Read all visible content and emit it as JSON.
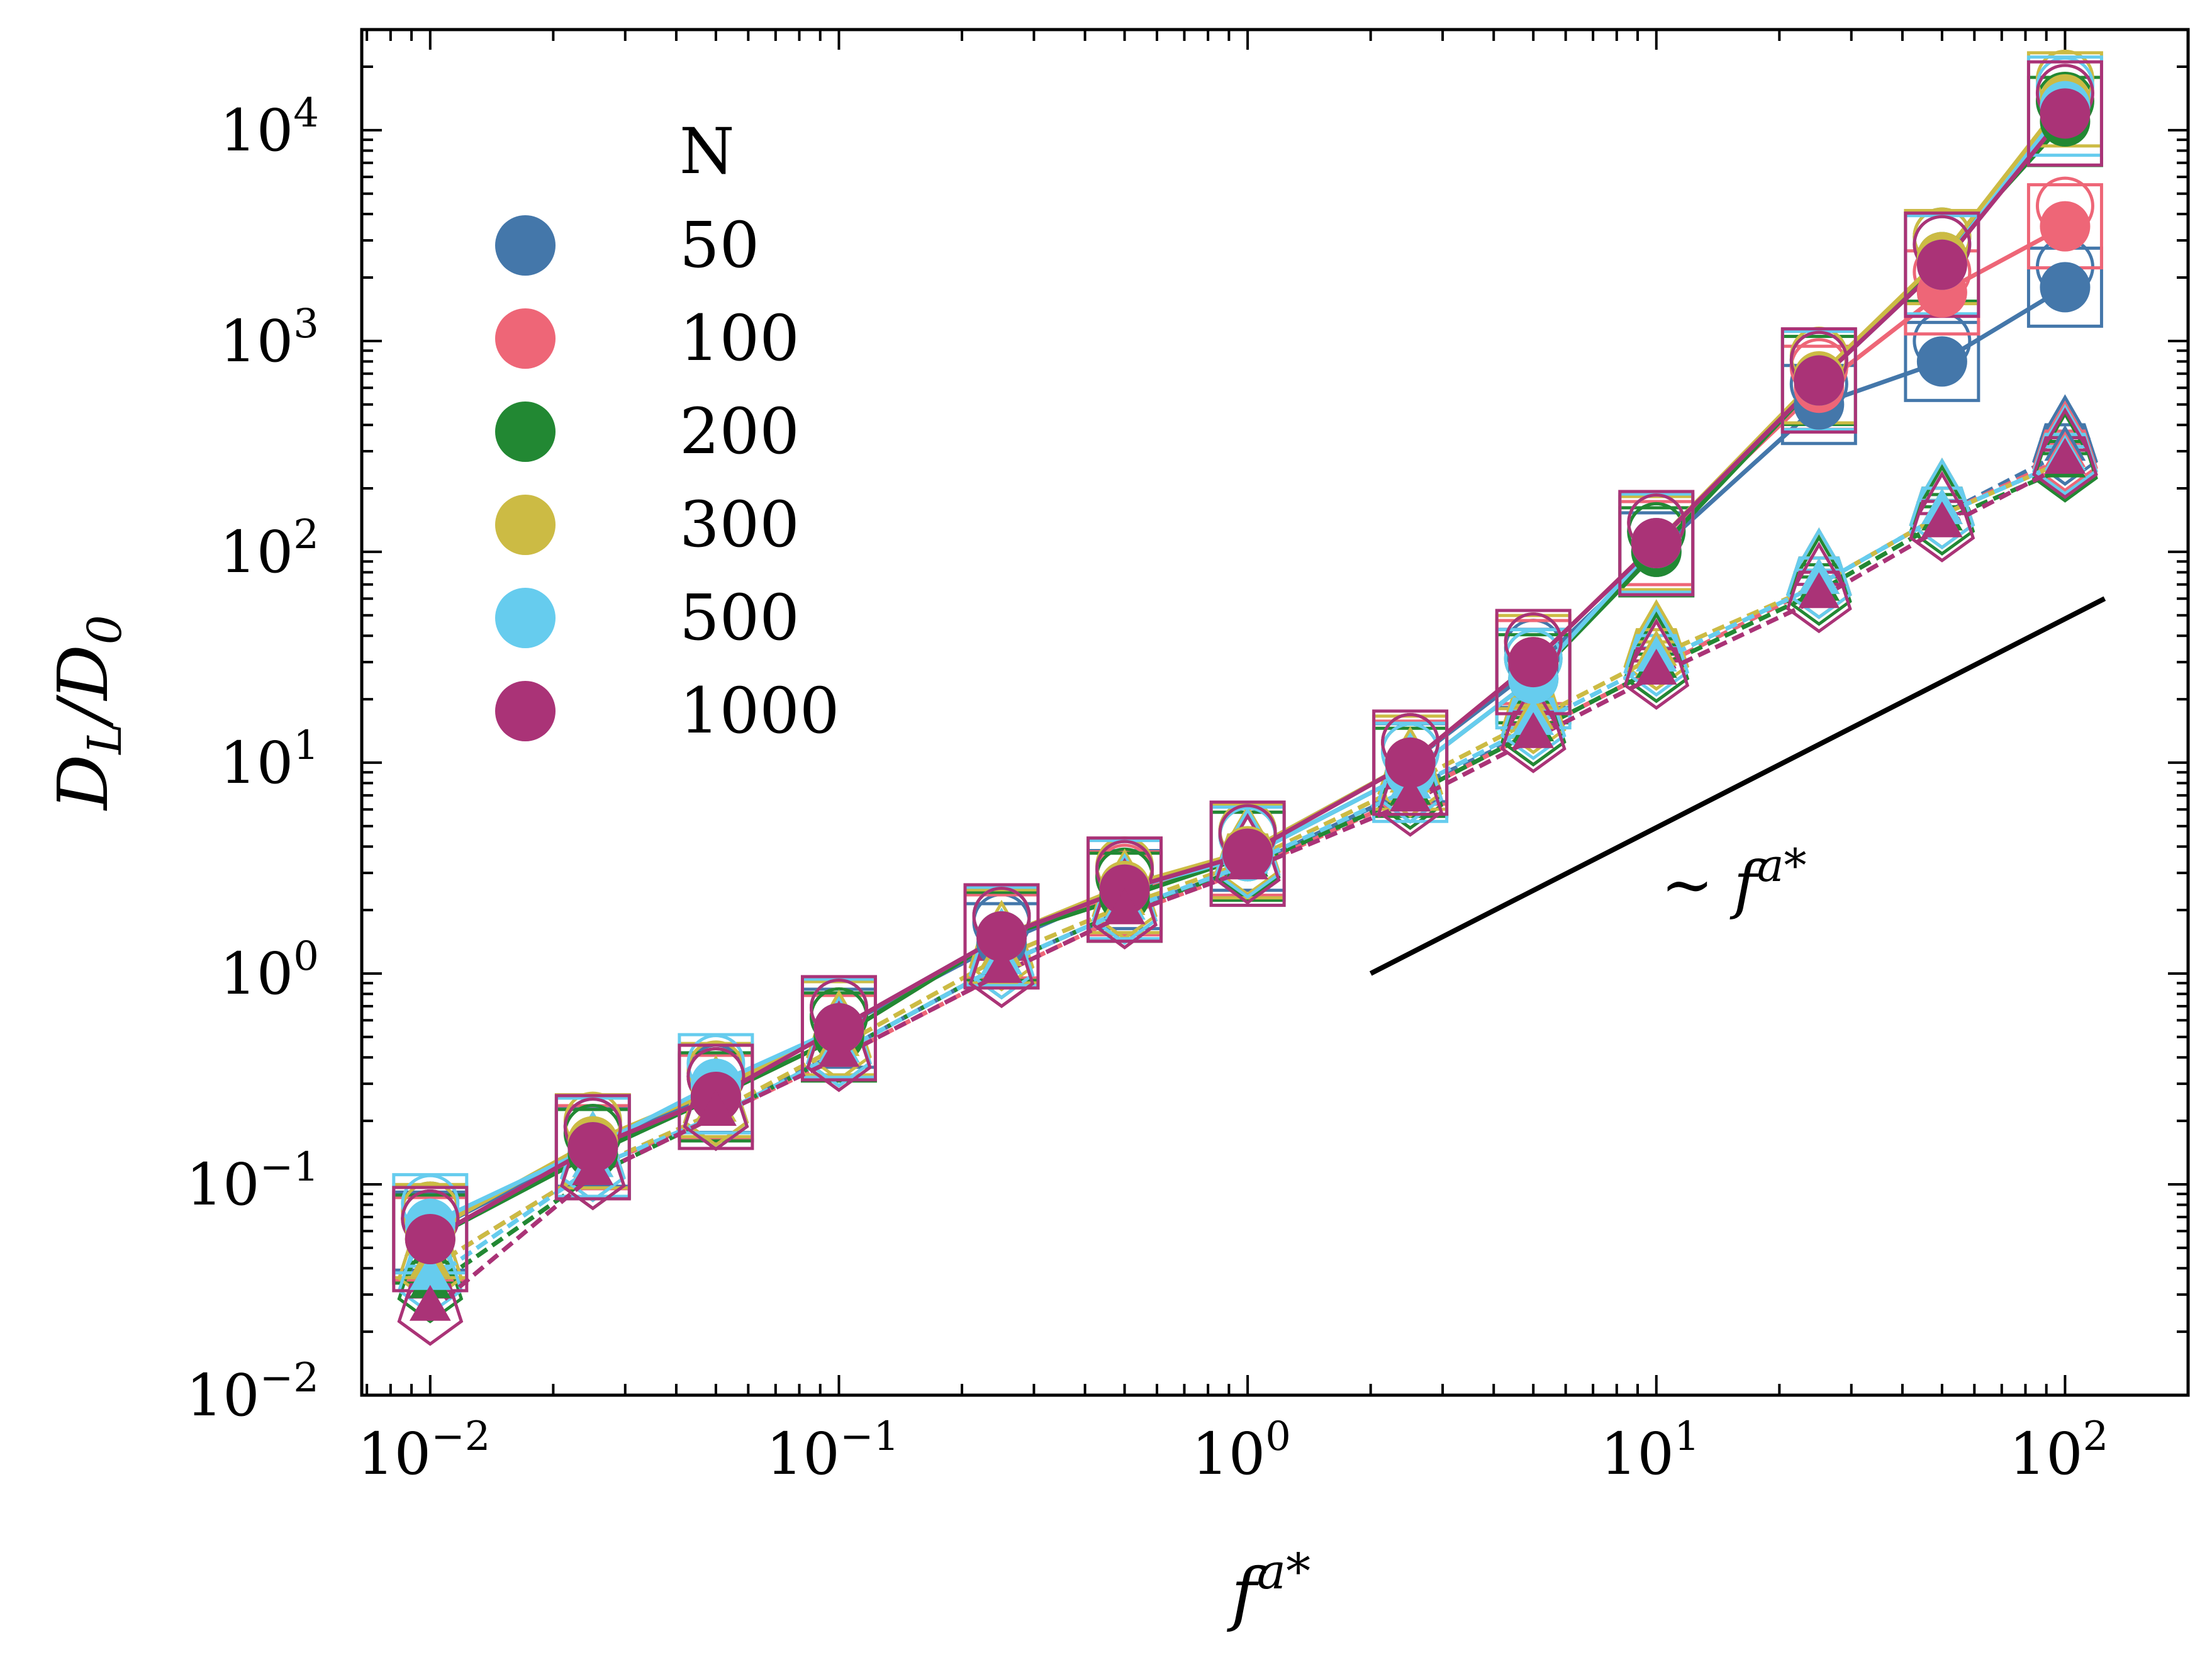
{
  "chart_data": {
    "type": "scatter",
    "title": "",
    "xlabel": "f^{a*}",
    "ylabel": "D_L/D_0",
    "xscale": "log",
    "yscale": "log",
    "xlim": [
      0.0068,
      200
    ],
    "ylim": [
      0.01,
      30000
    ],
    "grid": false,
    "legend": {
      "title": "N",
      "placement": "upper-left"
    },
    "x": [
      0.01,
      0.025,
      0.05,
      0.1,
      0.25,
      0.5,
      1,
      2.5,
      5,
      10,
      25,
      50,
      100
    ],
    "x_tick_labels": [
      {
        "value": 0.01,
        "base": "10",
        "exp": "−2"
      },
      {
        "value": 0.1,
        "base": "10",
        "exp": "−1"
      },
      {
        "value": 1,
        "base": "10",
        "exp": "0"
      },
      {
        "value": 10,
        "base": "10",
        "exp": "1"
      },
      {
        "value": 100,
        "base": "10",
        "exp": "2"
      }
    ],
    "y_tick_labels": [
      {
        "value": 0.01,
        "base": "10",
        "exp": "−2"
      },
      {
        "value": 0.1,
        "base": "10",
        "exp": "−1"
      },
      {
        "value": 1,
        "base": "10",
        "exp": "0"
      },
      {
        "value": 10,
        "base": "10",
        "exp": "1"
      },
      {
        "value": 100,
        "base": "10",
        "exp": "2"
      },
      {
        "value": 1000,
        "base": "10",
        "exp": "3"
      },
      {
        "value": 10000,
        "base": "10",
        "exp": "4"
      }
    ],
    "series": [
      {
        "name": "50",
        "color": "#4477aa",
        "filled": [
          0.06,
          0.15,
          0.27,
          0.55,
          1.4,
          2.5,
          3.8,
          10,
          28,
          100,
          500,
          800,
          1800
        ],
        "dashed": [
          0.04,
          0.12,
          0.22,
          0.42,
          1.1,
          2.0,
          3.2,
          7.5,
          14,
          28,
          70,
          150,
          300
        ]
      },
      {
        "name": "100",
        "color": "#ee6677",
        "filled": [
          0.055,
          0.15,
          0.26,
          0.5,
          1.5,
          2.4,
          3.7,
          10,
          30,
          110,
          600,
          1700,
          3500
        ],
        "dashed": [
          0.04,
          0.12,
          0.21,
          0.4,
          1.0,
          1.9,
          3.1,
          7.0,
          14,
          28,
          70,
          150,
          280
        ]
      },
      {
        "name": "200",
        "color": "#228833",
        "filled": [
          0.055,
          0.14,
          0.26,
          0.5,
          1.5,
          2.3,
          3.6,
          9,
          25,
          100,
          650,
          2500,
          11000
        ],
        "dashed": [
          0.032,
          0.11,
          0.21,
          0.42,
          1.1,
          2.0,
          3.2,
          7.0,
          14,
          28,
          65,
          140,
          250
        ]
      },
      {
        "name": "300",
        "color": "#ccbb44",
        "filled": [
          0.06,
          0.16,
          0.28,
          0.55,
          1.5,
          2.6,
          3.8,
          10,
          30,
          110,
          680,
          2500,
          14000
        ],
        "dashed": [
          0.04,
          0.12,
          0.22,
          0.45,
          1.2,
          2.1,
          3.4,
          8.0,
          16,
          32,
          70,
          150,
          270
        ]
      },
      {
        "name": "500",
        "color": "#66ccee",
        "filled": [
          0.065,
          0.15,
          0.3,
          0.55,
          1.5,
          2.5,
          3.6,
          9,
          25,
          110,
          650,
          2300,
          13000
        ],
        "dashed": [
          0.035,
          0.12,
          0.21,
          0.42,
          1.1,
          2.0,
          3.3,
          7.5,
          15,
          30,
          70,
          150,
          270
        ]
      },
      {
        "name": "1000",
        "color": "#aa3377",
        "filled": [
          0.055,
          0.15,
          0.26,
          0.55,
          1.5,
          2.5,
          3.7,
          10,
          30,
          110,
          650,
          2300,
          12000
        ],
        "dashed": [
          0.025,
          0.11,
          0.21,
          0.4,
          1.0,
          1.9,
          3.1,
          6.5,
          13,
          26,
          60,
          130,
          260
        ]
      }
    ],
    "reference_line": {
      "label": "∼ f^{a*}",
      "x": [
        2,
        125
      ],
      "y": [
        1,
        60
      ],
      "color": "#000000"
    }
  }
}
